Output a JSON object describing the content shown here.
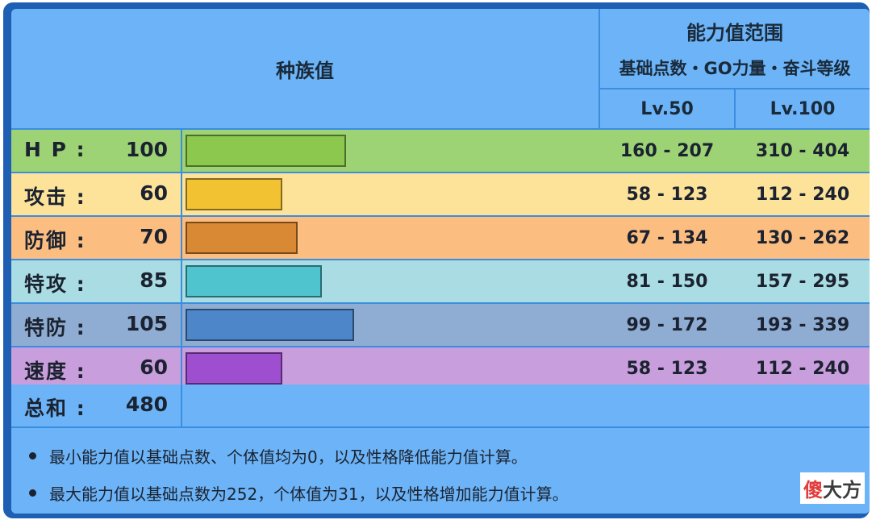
{
  "header": {
    "base_stats_label": "种族值",
    "range_title": "能力值范围",
    "range_subtitle": "基础点数・GO力量・奋斗等级",
    "lv50_label": "Lv.50",
    "lv100_label": "Lv.100"
  },
  "stats": [
    {
      "name": "H P :",
      "value": "100",
      "base": 100,
      "lv50": "160 - 207",
      "lv100": "310 - 404",
      "row_color": "#9dd374",
      "bar_color": "#8cc84e",
      "range_color": "#9dd374"
    },
    {
      "name": "攻击 :",
      "value": "60",
      "base": 60,
      "lv50": "58 - 123",
      "lv100": "112 - 240",
      "row_color": "#fde39a",
      "bar_color": "#f2c232",
      "range_color": "#fde39a"
    },
    {
      "name": "防御 :",
      "value": "70",
      "base": 70,
      "lv50": "67 - 134",
      "lv100": "130 - 262",
      "row_color": "#fcbd80",
      "bar_color": "#d98834",
      "range_color": "#fcbd80"
    },
    {
      "name": "特攻 :",
      "value": "85",
      "base": 85,
      "lv50": "81 - 150",
      "lv100": "157 - 295",
      "row_color": "#a9dde3",
      "bar_color": "#4fc4cf",
      "range_color": "#a9dde3"
    },
    {
      "name": "特防 :",
      "value": "105",
      "base": 105,
      "lv50": "99 - 172",
      "lv100": "193 - 339",
      "row_color": "#8facd2",
      "bar_color": "#4d86c9",
      "range_color": "#8facd2"
    },
    {
      "name": "速度 :",
      "value": "60",
      "base": 60,
      "lv50": "58 - 123",
      "lv100": "112 - 240",
      "row_color": "#c99edc",
      "bar_color": "#9e4fd0",
      "range_color": "#c99edc"
    }
  ],
  "total": {
    "name": "总和 :",
    "value": "480"
  },
  "notes": [
    "最小能力值以基础点数、个体值均为0，以及性格降低能力值计算。",
    "最大能力值以基础点数为252，个体值为31，以及性格增加能力值计算。"
  ],
  "watermark": {
    "part1": "傻",
    "part2": "大方"
  },
  "max_base": 255
}
